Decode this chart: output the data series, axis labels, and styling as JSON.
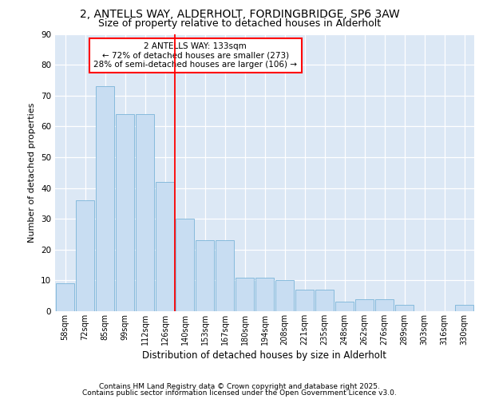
{
  "title1": "2, ANTELLS WAY, ALDERHOLT, FORDINGBRIDGE, SP6 3AW",
  "title2": "Size of property relative to detached houses in Alderholt",
  "xlabel": "Distribution of detached houses by size in Alderholt",
  "ylabel": "Number of detached properties",
  "categories": [
    "58sqm",
    "72sqm",
    "85sqm",
    "99sqm",
    "112sqm",
    "126sqm",
    "140sqm",
    "153sqm",
    "167sqm",
    "180sqm",
    "194sqm",
    "208sqm",
    "221sqm",
    "235sqm",
    "248sqm",
    "262sqm",
    "276sqm",
    "289sqm",
    "303sqm",
    "316sqm",
    "330sqm"
  ],
  "values": [
    9,
    36,
    73,
    64,
    64,
    42,
    30,
    23,
    23,
    11,
    11,
    10,
    7,
    7,
    3,
    4,
    4,
    2,
    0,
    0,
    2
  ],
  "bar_color": "#c8ddf2",
  "bar_edge_color": "#7ab4d8",
  "plot_bg_color": "#dce8f5",
  "fig_bg_color": "#ffffff",
  "grid_color": "#ffffff",
  "vline_color": "red",
  "vline_x": 5.5,
  "annotation_text": "2 ANTELLS WAY: 133sqm\n← 72% of detached houses are smaller (273)\n28% of semi-detached houses are larger (106) →",
  "annotation_box_color": "white",
  "annotation_box_edge": "red",
  "ylim": [
    0,
    90
  ],
  "yticks": [
    0,
    10,
    20,
    30,
    40,
    50,
    60,
    70,
    80,
    90
  ],
  "footer1": "Contains HM Land Registry data © Crown copyright and database right 2025.",
  "footer2": "Contains public sector information licensed under the Open Government Licence v3.0."
}
